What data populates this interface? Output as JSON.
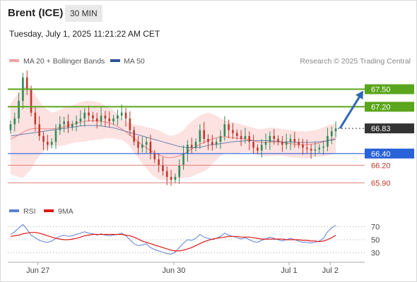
{
  "header": {
    "title": "Brent (ICE)",
    "timeframe": "30 MIN",
    "timestamp": "Tuesday, July 1, 2025 11:21:22 AM CET"
  },
  "legend": {
    "bb_label": "MA 20 + Bollinger Bands",
    "ma50_label": "MA 50",
    "credit": "Research © 2025 Trading Central"
  },
  "rsi_legend": {
    "rsi": "RSI",
    "ma9": "9MA"
  },
  "colors": {
    "bull": "#2e8b57",
    "bear": "#c0392b",
    "resistance": "#5aa51b",
    "pivot": "#2962d9",
    "support": "#e07b7b",
    "last_price": "#333333",
    "arrow": "#2f67b5",
    "band_fill": "#fde2e2",
    "ma20": "#f08080",
    "ma50": "#6b7fb0",
    "rsi": "#5b7fd6",
    "rsi_ma": "#e01818"
  },
  "chart_data": [
    {
      "type": "candlestick",
      "x_labels": [
        "Jun 27",
        "Jun 30",
        "Jul 1",
        "Jul 2"
      ],
      "ylim": [
        65.65,
        67.82
      ],
      "levels": [
        {
          "value": 67.5,
          "label": "67.50",
          "kind": "resistance"
        },
        {
          "value": 67.2,
          "label": "67.20",
          "kind": "resistance"
        },
        {
          "value": 66.83,
          "label": "66.83",
          "kind": "last"
        },
        {
          "value": 66.4,
          "label": "66.40",
          "kind": "pivot"
        },
        {
          "value": 66.2,
          "label": "66.20",
          "kind": "support"
        },
        {
          "value": 65.9,
          "label": "65.90",
          "kind": "support"
        }
      ],
      "close": [
        66.9,
        67.0,
        67.3,
        67.7,
        67.5,
        67.1,
        66.9,
        66.7,
        66.6,
        66.55,
        66.6,
        66.8,
        66.9,
        66.95,
        66.85,
        66.9,
        66.95,
        67.0,
        67.1,
        67.05,
        67.0,
        66.95,
        67.05,
        67.0,
        66.95,
        67.0,
        67.05,
        67.1,
        67.0,
        66.8,
        66.6,
        66.5,
        66.55,
        66.6,
        66.4,
        66.3,
        66.2,
        66.1,
        66.0,
        65.95,
        66.0,
        66.2,
        66.4,
        66.55,
        66.5,
        66.6,
        66.8,
        66.65,
        66.6,
        66.55,
        66.6,
        66.7,
        66.9,
        66.8,
        66.75,
        66.7,
        66.65,
        66.7,
        66.6,
        66.5,
        66.45,
        66.55,
        66.6,
        66.7,
        66.65,
        66.6,
        66.55,
        66.6,
        66.65,
        66.6,
        66.55,
        66.5,
        66.48,
        66.45,
        66.47,
        66.5,
        66.52,
        66.7,
        66.78,
        66.83
      ],
      "ma20": [
        66.65,
        66.68,
        66.72,
        66.76,
        66.8,
        66.82,
        66.83,
        66.83,
        66.82,
        66.82,
        66.82,
        66.83,
        66.84,
        66.86,
        66.88,
        66.9,
        66.92,
        66.94,
        66.95,
        66.96,
        66.96,
        66.96,
        66.95,
        66.94,
        66.92,
        66.9,
        66.86,
        66.82,
        66.77,
        66.72,
        66.66,
        66.6,
        66.55,
        66.5,
        66.45,
        66.41,
        66.38,
        66.35,
        66.33,
        66.33,
        66.34,
        66.36,
        66.39,
        66.43,
        66.48,
        66.52,
        66.56,
        66.59,
        66.62,
        66.65,
        66.67,
        66.68,
        66.69,
        66.68,
        66.67,
        66.66,
        66.66,
        66.65,
        66.64,
        66.62,
        66.6,
        66.59,
        66.59,
        66.6,
        66.6,
        66.6,
        66.59,
        66.58,
        66.57,
        66.56,
        66.55,
        66.55,
        66.55,
        66.56,
        66.57,
        66.58,
        66.6,
        66.62,
        66.64,
        66.66
      ],
      "ma50": [
        66.7,
        66.71,
        66.72,
        66.73,
        66.74,
        66.75,
        66.76,
        66.77,
        66.78,
        66.79,
        66.8,
        66.81,
        66.82,
        66.83,
        66.84,
        66.85,
        66.86,
        66.87,
        66.88,
        66.88,
        66.88,
        66.88,
        66.87,
        66.86,
        66.85,
        66.84,
        66.82,
        66.8,
        66.78,
        66.76,
        66.74,
        66.72,
        66.7,
        66.68,
        66.66,
        66.64,
        66.62,
        66.6,
        66.58,
        66.56,
        66.54,
        66.52,
        66.51,
        66.5,
        66.5,
        66.5,
        66.51,
        66.52,
        66.54,
        66.55,
        66.56,
        66.57,
        66.58,
        66.59,
        66.6,
        66.61,
        66.61,
        66.62,
        66.62,
        66.62,
        66.62,
        66.62,
        66.62,
        66.62,
        66.61,
        66.61,
        66.6,
        66.6,
        66.6,
        66.59,
        66.59,
        66.59,
        66.59,
        66.59,
        66.6,
        66.6,
        66.61,
        66.62,
        66.63,
        66.64
      ],
      "bb_upper": [
        67.25,
        67.35,
        67.45,
        67.55,
        67.55,
        67.5,
        67.4,
        67.3,
        67.2,
        67.15,
        67.1,
        67.12,
        67.15,
        67.18,
        67.2,
        67.22,
        67.25,
        67.28,
        67.3,
        67.3,
        67.3,
        67.28,
        67.26,
        67.22,
        67.18,
        67.14,
        67.08,
        67.0,
        66.95,
        66.92,
        66.9,
        66.88,
        66.87,
        66.85,
        66.84,
        66.82,
        66.8,
        66.76,
        66.72,
        66.7,
        66.72,
        66.75,
        66.8,
        66.88,
        66.95,
        67.0,
        67.05,
        67.08,
        67.1,
        67.08,
        67.05,
        67.0,
        66.97,
        66.95,
        66.93,
        66.92,
        66.9,
        66.88,
        66.86,
        66.84,
        66.82,
        66.82,
        66.83,
        66.84,
        66.84,
        66.83,
        66.82,
        66.81,
        66.8,
        66.79,
        66.78,
        66.78,
        66.78,
        66.79,
        66.8,
        66.82,
        66.85,
        66.88,
        66.9,
        66.92
      ],
      "bb_lower": [
        66.05,
        66.02,
        66.0,
        65.98,
        66.05,
        66.14,
        66.26,
        66.36,
        66.44,
        66.49,
        66.54,
        66.54,
        66.53,
        66.54,
        66.56,
        66.58,
        66.59,
        66.6,
        66.6,
        66.62,
        66.62,
        66.64,
        66.64,
        66.66,
        66.66,
        66.66,
        66.64,
        66.64,
        66.59,
        66.52,
        66.42,
        66.32,
        66.23,
        66.15,
        66.06,
        66.0,
        65.96,
        65.94,
        65.94,
        65.96,
        65.96,
        65.97,
        65.98,
        65.98,
        66.01,
        66.04,
        66.07,
        66.1,
        66.14,
        66.22,
        66.29,
        66.36,
        66.41,
        66.41,
        66.41,
        66.4,
        66.42,
        66.42,
        66.42,
        66.4,
        66.38,
        66.36,
        66.35,
        66.36,
        66.36,
        66.37,
        66.36,
        66.35,
        66.34,
        66.33,
        66.32,
        66.32,
        66.32,
        66.33,
        66.34,
        66.34,
        66.35,
        66.36,
        66.38,
        66.4
      ],
      "forecast": [
        66.83,
        67.5
      ]
    },
    {
      "type": "line",
      "name": "RSI",
      "ylim": [
        20,
        80
      ],
      "ticks": [
        70,
        50,
        30
      ],
      "rsi": [
        58,
        62,
        68,
        73,
        66,
        57,
        53,
        49,
        47,
        46,
        48,
        52,
        55,
        57,
        55,
        56,
        58,
        60,
        62,
        60,
        59,
        57,
        59,
        57,
        56,
        57,
        58,
        60,
        56,
        50,
        44,
        41,
        42,
        44,
        38,
        35,
        33,
        31,
        29,
        28,
        31,
        38,
        45,
        50,
        49,
        52,
        58,
        54,
        52,
        50,
        52,
        55,
        60,
        57,
        55,
        53,
        51,
        53,
        50,
        47,
        46,
        49,
        51,
        54,
        52,
        50,
        48,
        50,
        52,
        50,
        48,
        46,
        46,
        45,
        46,
        48,
        52,
        62,
        68,
        72
      ],
      "rsi_ma": [
        55,
        56,
        57,
        59,
        60,
        61,
        61,
        60,
        58,
        56,
        54,
        52,
        51,
        50,
        50,
        51,
        52,
        54,
        56,
        57,
        58,
        58,
        58,
        58,
        58,
        58,
        58,
        58,
        57,
        56,
        54,
        51,
        48,
        46,
        44,
        42,
        40,
        38,
        36,
        34,
        33,
        33,
        34,
        36,
        38,
        41,
        44,
        47,
        49,
        51,
        52,
        53,
        54,
        55,
        55,
        55,
        54,
        54,
        54,
        53,
        52,
        51,
        51,
        51,
        51,
        51,
        51,
        50,
        50,
        50,
        50,
        49,
        49,
        48,
        48,
        47,
        48,
        50,
        53,
        57
      ]
    }
  ]
}
